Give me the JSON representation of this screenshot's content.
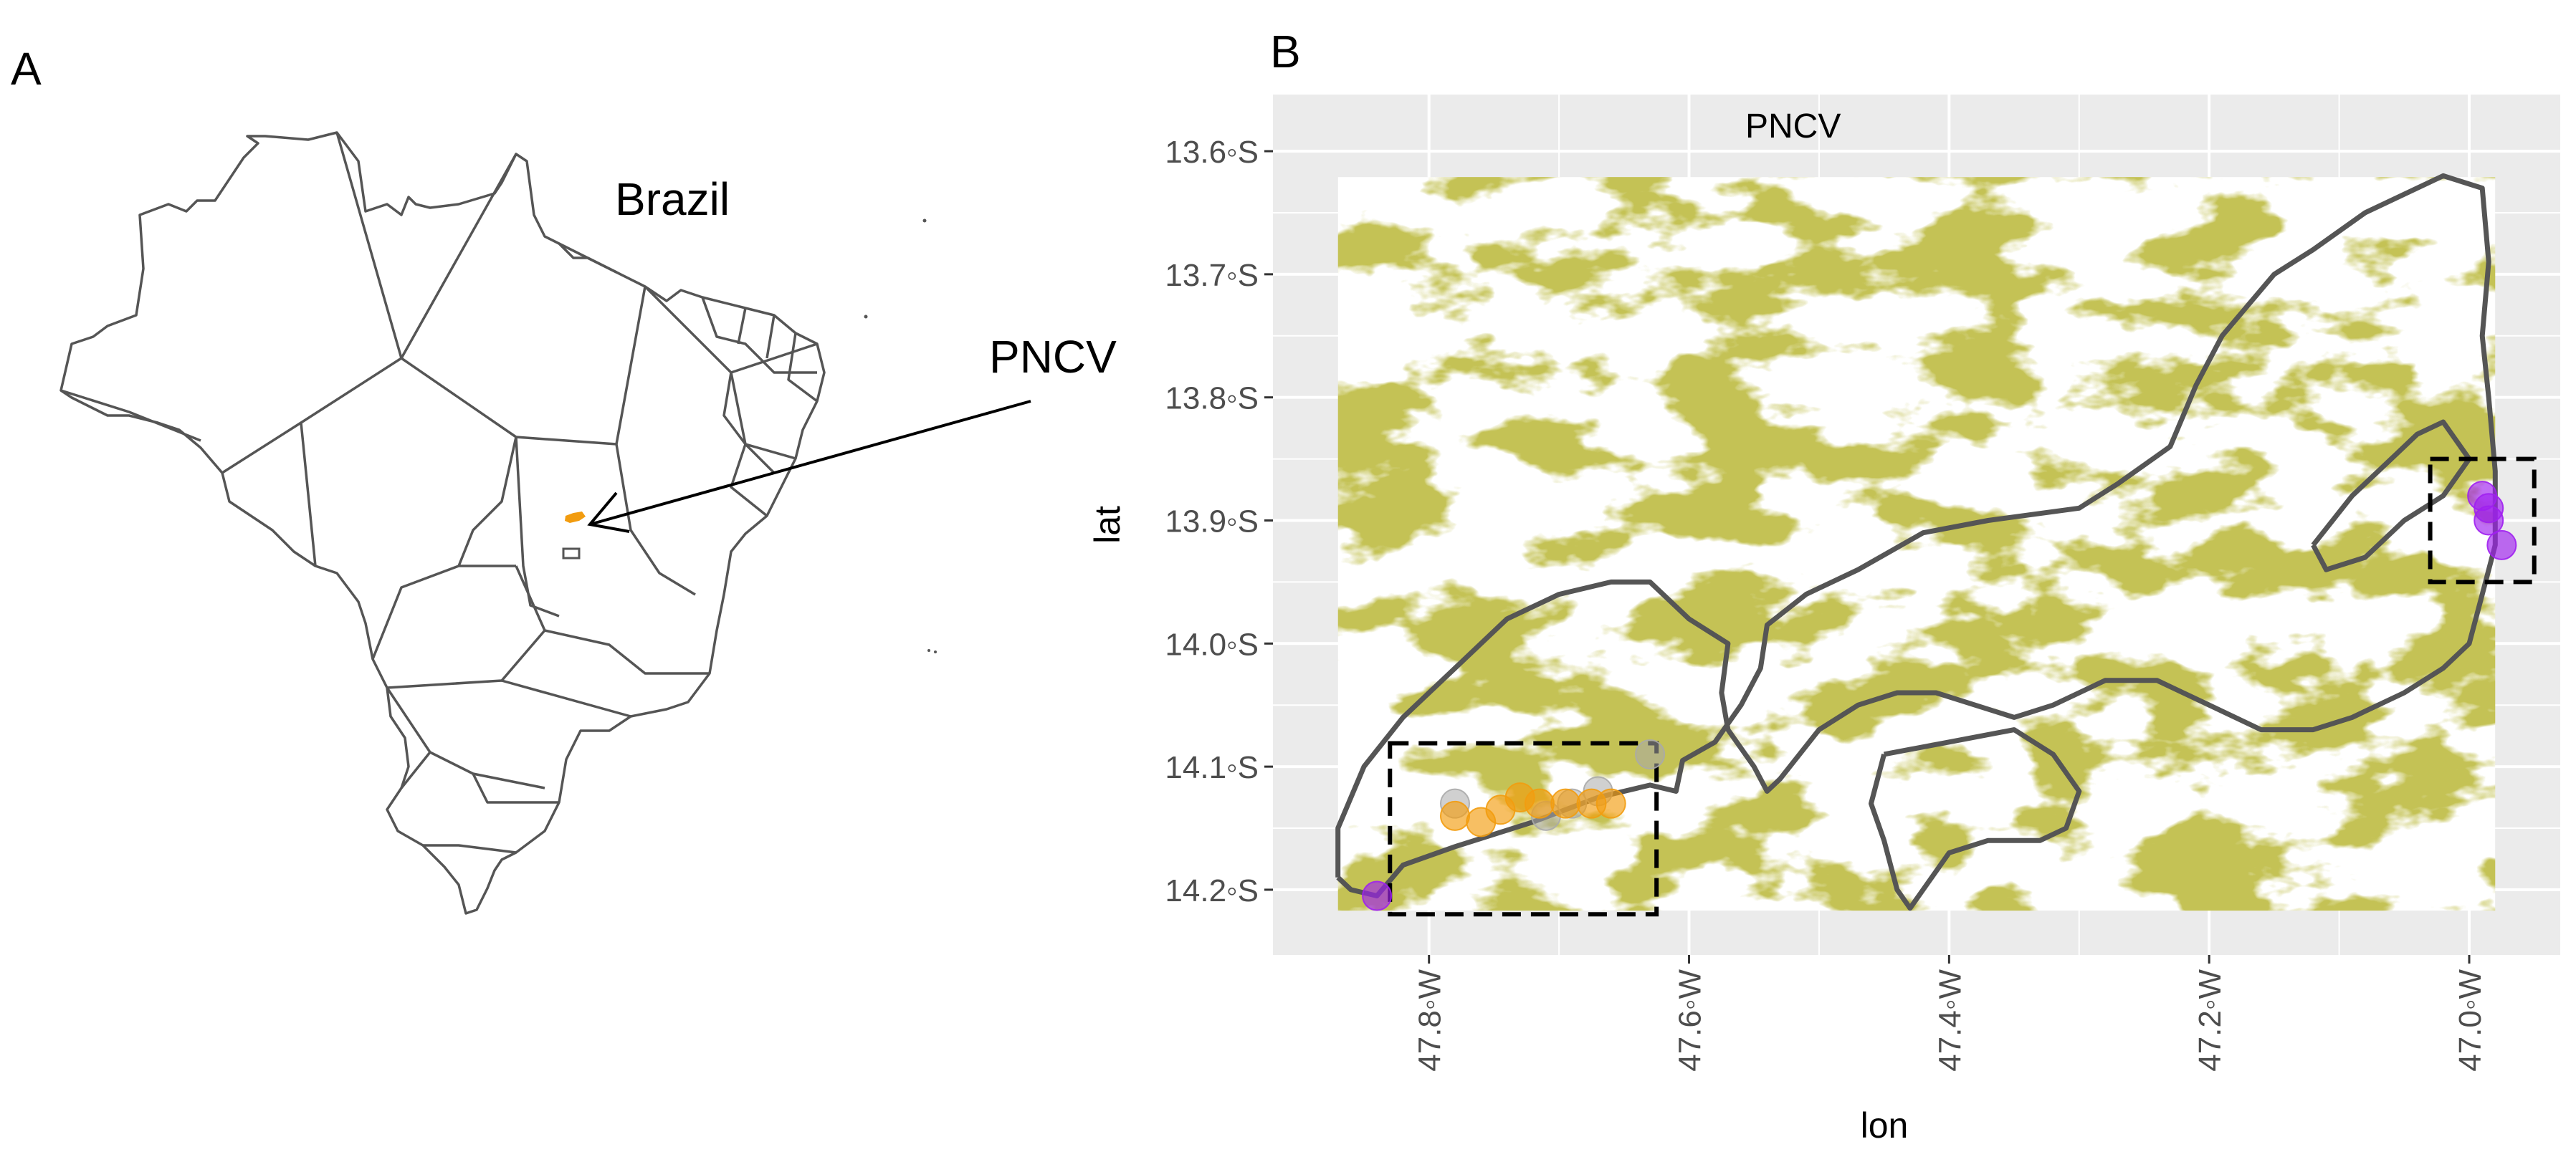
{
  "panel_a": {
    "label": "A",
    "country_label": "Brazil",
    "park_label": "PNCV",
    "outline_color": "#555555",
    "park_color": "#f29c0f"
  },
  "panel_b": {
    "label": "B",
    "inset_title": "PNCV",
    "xlabel": "lon",
    "ylabel": "lat",
    "x_ticks": [
      {
        "value": -47.8,
        "label": "47.8◦W"
      },
      {
        "value": -47.6,
        "label": "47.6◦W"
      },
      {
        "value": -47.4,
        "label": "47.4◦W"
      },
      {
        "value": -47.2,
        "label": "47.2◦W"
      },
      {
        "value": -47.0,
        "label": "47.0◦W"
      }
    ],
    "y_ticks": [
      {
        "value": -13.6,
        "label": "13.6◦S"
      },
      {
        "value": -13.7,
        "label": "13.7◦S"
      },
      {
        "value": -13.8,
        "label": "13.8◦S"
      },
      {
        "value": -13.9,
        "label": "13.9◦S"
      },
      {
        "value": -14.0,
        "label": "14.0◦S"
      },
      {
        "value": -14.1,
        "label": "14.1◦S"
      },
      {
        "value": -14.2,
        "label": "14.2◦S"
      }
    ],
    "xlim": [
      -47.92,
      -46.93
    ],
    "ylim": [
      -14.253,
      -13.554
    ],
    "raster_extent": {
      "lon": [
        -47.87,
        -46.98
      ],
      "lat": [
        -14.217,
        -13.621
      ]
    },
    "boxes": [
      {
        "lon": [
          -47.83,
          -47.625
        ],
        "lat": [
          -14.22,
          -14.081
        ]
      },
      {
        "lon": [
          -47.03,
          -46.95
        ],
        "lat": [
          -13.95,
          -13.85
        ]
      }
    ],
    "colors": {
      "panel_bg": "#ebebeb",
      "grid": "#ffffff",
      "vegetation": "#8c8a17",
      "boundary": "#555555",
      "orange": "#f29c0f",
      "purple": "#a020f0",
      "gray": "#aaaaaa"
    },
    "points": [
      {
        "group": "gray",
        "lon": -47.63,
        "lat": -14.09
      },
      {
        "group": "gray",
        "lon": -47.67,
        "lat": -14.12
      },
      {
        "group": "gray",
        "lon": -47.69,
        "lat": -14.13
      },
      {
        "group": "gray",
        "lon": -47.71,
        "lat": -14.14
      },
      {
        "group": "gray",
        "lon": -47.78,
        "lat": -14.13
      },
      {
        "group": "orange",
        "lon": -47.78,
        "lat": -14.14
      },
      {
        "group": "orange",
        "lon": -47.76,
        "lat": -14.145
      },
      {
        "group": "orange",
        "lon": -47.745,
        "lat": -14.135
      },
      {
        "group": "orange",
        "lon": -47.73,
        "lat": -14.125
      },
      {
        "group": "orange",
        "lon": -47.715,
        "lat": -14.13
      },
      {
        "group": "orange",
        "lon": -47.695,
        "lat": -14.13
      },
      {
        "group": "orange",
        "lon": -47.675,
        "lat": -14.13
      },
      {
        "group": "orange",
        "lon": -47.66,
        "lat": -14.13
      },
      {
        "group": "purple",
        "lon": -47.84,
        "lat": -14.205
      },
      {
        "group": "purple",
        "lon": -46.99,
        "lat": -13.88
      },
      {
        "group": "purple",
        "lon": -46.985,
        "lat": -13.89
      },
      {
        "group": "purple",
        "lon": -46.985,
        "lat": -13.9
      },
      {
        "group": "purple",
        "lon": -46.975,
        "lat": -13.92
      }
    ],
    "boundary_main": [
      [
        -47.87,
        -14.19
      ],
      [
        -47.86,
        -14.2
      ],
      [
        -47.84,
        -14.205
      ],
      [
        -47.82,
        -14.18
      ],
      [
        -47.78,
        -14.165
      ],
      [
        -47.72,
        -14.145
      ],
      [
        -47.67,
        -14.125
      ],
      [
        -47.63,
        -14.115
      ],
      [
        -47.61,
        -14.12
      ],
      [
        -47.605,
        -14.095
      ],
      [
        -47.58,
        -14.08
      ],
      [
        -47.56,
        -14.05
      ],
      [
        -47.545,
        -14.02
      ],
      [
        -47.54,
        -13.985
      ],
      [
        -47.51,
        -13.96
      ],
      [
        -47.47,
        -13.94
      ],
      [
        -47.42,
        -13.91
      ],
      [
        -47.37,
        -13.9
      ],
      [
        -47.3,
        -13.89
      ],
      [
        -47.27,
        -13.87
      ],
      [
        -47.23,
        -13.84
      ],
      [
        -47.21,
        -13.79
      ],
      [
        -47.19,
        -13.75
      ],
      [
        -47.15,
        -13.7
      ],
      [
        -47.12,
        -13.68
      ],
      [
        -47.08,
        -13.65
      ],
      [
        -47.02,
        -13.62
      ],
      [
        -46.99,
        -13.63
      ],
      [
        -46.985,
        -13.69
      ],
      [
        -46.99,
        -13.75
      ],
      [
        -46.985,
        -13.8
      ],
      [
        -46.98,
        -13.86
      ],
      [
        -46.98,
        -13.92
      ],
      [
        -46.99,
        -13.96
      ],
      [
        -47.0,
        -14.0
      ],
      [
        -47.02,
        -14.02
      ],
      [
        -47.05,
        -14.04
      ],
      [
        -47.09,
        -14.06
      ],
      [
        -47.12,
        -14.07
      ],
      [
        -47.16,
        -14.07
      ],
      [
        -47.2,
        -14.05
      ],
      [
        -47.24,
        -14.03
      ],
      [
        -47.28,
        -14.03
      ],
      [
        -47.32,
        -14.05
      ],
      [
        -47.35,
        -14.06
      ],
      [
        -47.38,
        -14.05
      ],
      [
        -47.41,
        -14.04
      ],
      [
        -47.44,
        -14.04
      ],
      [
        -47.47,
        -14.05
      ],
      [
        -47.5,
        -14.07
      ],
      [
        -47.53,
        -14.11
      ],
      [
        -47.54,
        -14.12
      ],
      [
        -47.55,
        -14.1
      ],
      [
        -47.57,
        -14.07
      ],
      [
        -47.575,
        -14.04
      ],
      [
        -47.57,
        -14.0
      ],
      [
        -47.6,
        -13.98
      ],
      [
        -47.63,
        -13.95
      ],
      [
        -47.66,
        -13.95
      ],
      [
        -47.7,
        -13.96
      ],
      [
        -47.74,
        -13.98
      ],
      [
        -47.78,
        -14.02
      ],
      [
        -47.82,
        -14.06
      ],
      [
        -47.85,
        -14.1
      ],
      [
        -47.87,
        -14.15
      ],
      [
        -47.87,
        -14.19
      ]
    ],
    "boundary_inner": [
      [
        -47.12,
        -13.92
      ],
      [
        -47.09,
        -13.88
      ],
      [
        -47.06,
        -13.85
      ],
      [
        -47.04,
        -13.83
      ],
      [
        -47.02,
        -13.82
      ],
      [
        -47.0,
        -13.85
      ],
      [
        -47.02,
        -13.88
      ],
      [
        -47.05,
        -13.9
      ],
      [
        -47.08,
        -13.93
      ],
      [
        -47.11,
        -13.94
      ],
      [
        -47.12,
        -13.92
      ]
    ],
    "boundary_south": [
      [
        -47.45,
        -14.09
      ],
      [
        -47.4,
        -14.08
      ],
      [
        -47.35,
        -14.07
      ],
      [
        -47.32,
        -14.09
      ],
      [
        -47.3,
        -14.12
      ],
      [
        -47.31,
        -14.15
      ],
      [
        -47.33,
        -14.16
      ],
      [
        -47.37,
        -14.16
      ],
      [
        -47.4,
        -14.17
      ],
      [
        -47.42,
        -14.2
      ],
      [
        -47.43,
        -14.215
      ],
      [
        -47.44,
        -14.2
      ],
      [
        -47.45,
        -14.16
      ],
      [
        -47.46,
        -14.13
      ],
      [
        -47.45,
        -14.09
      ]
    ]
  }
}
